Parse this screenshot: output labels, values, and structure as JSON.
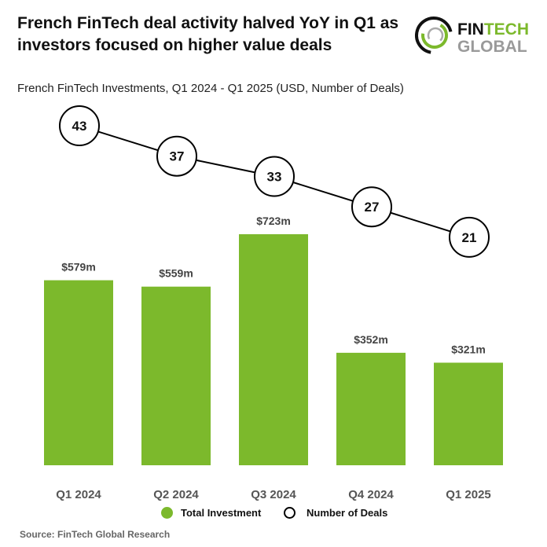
{
  "title": "French FinTech deal activity halved YoY in Q1 as investors focused on higher value deals",
  "logo": {
    "line1_part1": "FIN",
    "line1_part2": "TECH",
    "line2": "GLOBAL"
  },
  "source": "Source: FinTech Global Research",
  "colors": {
    "bar": "#7cb92c",
    "line": "#000000",
    "logo_green": "#7cb92c",
    "logo_gray": "#9a9a9a"
  },
  "chart_data": {
    "type": "bar+line",
    "title": "French FinTech Investments, Q1 2024 - Q1 2025 (USD, Number of Deals)",
    "categories": [
      "Q1 2024",
      "Q2 2024",
      "Q3 2024",
      "Q4 2024",
      "Q1 2025"
    ],
    "series": [
      {
        "name": "Total Investment",
        "type": "bar",
        "values": [
          579,
          559,
          723,
          352,
          321
        ],
        "labels": [
          "$579m",
          "$559m",
          "$723m",
          "$352m",
          "$321m"
        ]
      },
      {
        "name": "Number of Deals",
        "type": "line",
        "values": [
          43,
          37,
          33,
          27,
          21
        ],
        "labels": [
          "43",
          "37",
          "33",
          "27",
          "21"
        ]
      }
    ],
    "grid": false,
    "legend": "bottom"
  }
}
